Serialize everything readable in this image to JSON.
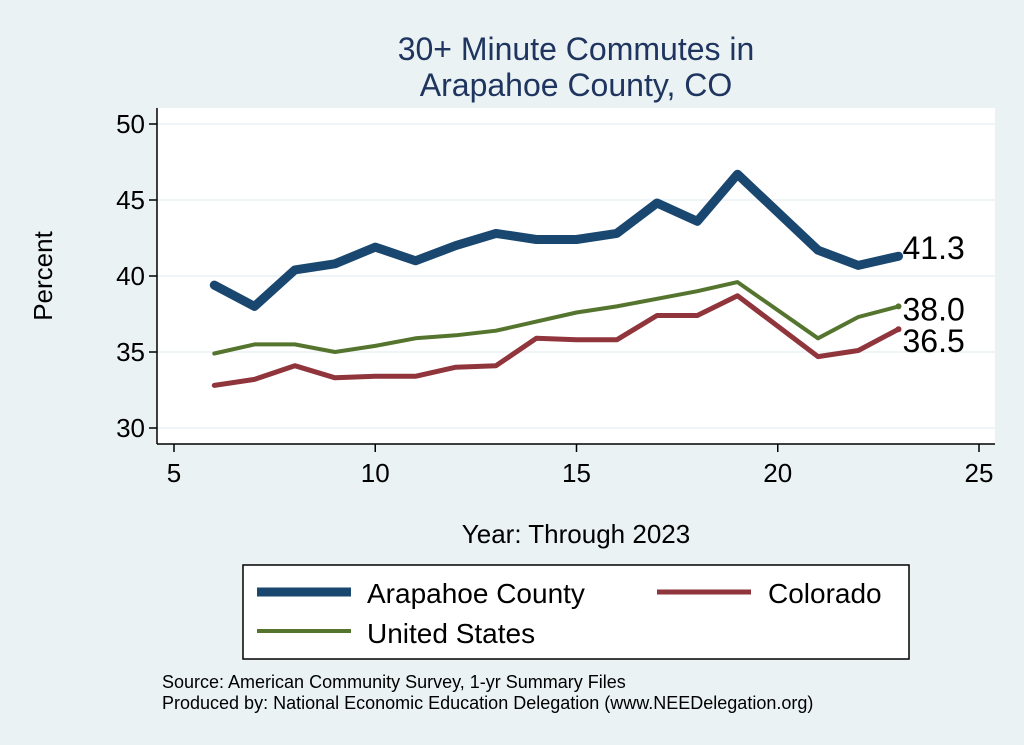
{
  "chart_data": {
    "type": "line",
    "title": "30+ Minute Commutes in",
    "subtitle": "Arapahoe County, CO",
    "xlabel": "Year: Through 2023",
    "ylabel": "Percent",
    "xlim": [
      5,
      25
    ],
    "ylim": [
      30,
      50
    ],
    "xticks": [
      5,
      10,
      15,
      20,
      25
    ],
    "yticks": [
      30,
      35,
      40,
      45,
      50
    ],
    "grid": "horizontal",
    "series": [
      {
        "name": "Arapahoe County",
        "color": "#1a476f",
        "x": [
          6,
          7,
          8,
          9,
          10,
          11,
          12,
          13,
          14,
          15,
          16,
          17,
          18,
          19,
          21,
          22,
          23
        ],
        "values": [
          39.4,
          38.0,
          40.4,
          40.8,
          41.9,
          41.0,
          42.0,
          42.8,
          42.4,
          42.4,
          42.8,
          44.8,
          43.6,
          46.7,
          41.7,
          40.7,
          41.3
        ],
        "end_label": "41.3"
      },
      {
        "name": "Colorado",
        "color": "#90353b",
        "x": [
          6,
          7,
          8,
          9,
          10,
          11,
          12,
          13,
          14,
          15,
          16,
          17,
          18,
          19,
          21,
          22,
          23
        ],
        "values": [
          32.8,
          33.2,
          34.1,
          33.3,
          33.4,
          33.4,
          34.0,
          34.1,
          35.9,
          35.8,
          35.8,
          37.4,
          37.4,
          38.7,
          34.7,
          35.1,
          36.5
        ],
        "end_label": "36.5"
      },
      {
        "name": "United States",
        "color": "#55752f",
        "x": [
          6,
          7,
          8,
          9,
          10,
          11,
          12,
          13,
          14,
          15,
          16,
          17,
          18,
          19,
          21,
          22,
          23
        ],
        "values": [
          34.9,
          35.5,
          35.5,
          35.0,
          35.4,
          35.9,
          36.1,
          36.4,
          37.0,
          37.6,
          38.0,
          38.5,
          39.0,
          39.6,
          35.9,
          37.3,
          38.0
        ],
        "end_label": "38.0"
      }
    ],
    "legend": {
      "placement": "bottom",
      "entries": [
        "Arapahoe County",
        "Colorado",
        "United States"
      ]
    }
  },
  "notes": {
    "source": "Source: American Community Survey, 1-yr Summary Files",
    "produced_by": "Produced by: National Economic Education Delegation (www.NEEDelegation.org)"
  }
}
